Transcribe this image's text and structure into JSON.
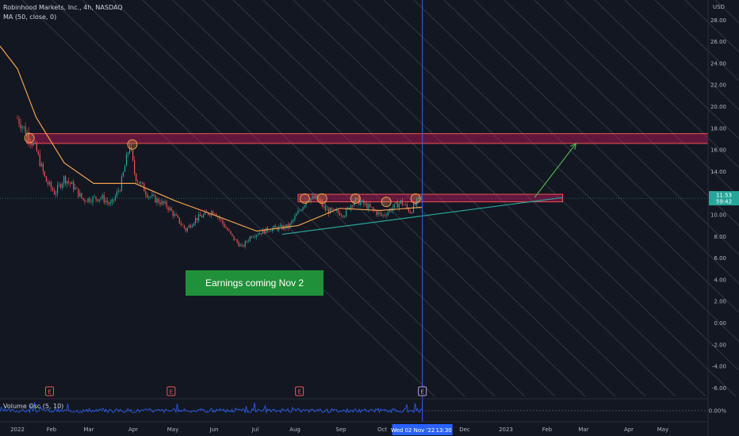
{
  "header": {
    "symbol_title": "Robinhood Markets, Inc., 4h, NASDAQ",
    "ma_label": "MA (50, close, 0)",
    "volume_osc_label": "Volume Osc (5, 10)",
    "currency": "USD"
  },
  "price_tag": {
    "value": "11.53",
    "countdown": "59:42"
  },
  "crosshair_time": "Wed 02 Nov '22",
  "crosshair_clock": "13:30",
  "annotation": "Earnings coming Nov 2",
  "earnings_marker": "E",
  "colors": {
    "background": "#131722",
    "up": "#26a69a",
    "down": "#ef5350",
    "ma": "#f0a04c",
    "resistance_zone": "#c2185b",
    "support_line": "#26a69a",
    "crosshair": "#2962ff",
    "annotation_bg": "#20913a"
  },
  "chart_data": {
    "type": "candlestick",
    "title": "Robinhood Markets, Inc., 4h, NASDAQ",
    "ylabel": "USD",
    "ylim": [
      -6.5,
      29
    ],
    "y_ticks": [
      "28.00",
      "26.00",
      "24.00",
      "22.00",
      "20.00",
      "18.00",
      "16.00",
      "14.00",
      "12.00",
      "10.00",
      "8.00",
      "6.00",
      "4.00",
      "2.00",
      "0.00",
      "-2.00",
      "-4.00",
      "-6.00"
    ],
    "x_ticks": [
      "2022",
      "Feb",
      "Mar",
      "Apr",
      "May",
      "Jun",
      "Jul",
      "Aug",
      "Sep",
      "Oct",
      "Dec",
      "2023",
      "Feb",
      "Mar",
      "Apr",
      "May"
    ],
    "price_path": [
      {
        "date": "2022-01-03",
        "price": 18.9
      },
      {
        "date": "2022-01-10",
        "price": 17.6
      },
      {
        "date": "2022-01-17",
        "price": 16.0
      },
      {
        "date": "2022-01-24",
        "price": 13.2
      },
      {
        "date": "2022-01-31",
        "price": 12.0
      },
      {
        "date": "2022-02-07",
        "price": 13.4
      },
      {
        "date": "2022-02-14",
        "price": 12.6
      },
      {
        "date": "2022-02-21",
        "price": 11.4
      },
      {
        "date": "2022-03-07",
        "price": 11.6
      },
      {
        "date": "2022-03-14",
        "price": 10.9
      },
      {
        "date": "2022-03-21",
        "price": 12.6
      },
      {
        "date": "2022-03-28",
        "price": 16.5
      },
      {
        "date": "2022-04-01",
        "price": 13.6
      },
      {
        "date": "2022-04-11",
        "price": 11.8
      },
      {
        "date": "2022-04-25",
        "price": 10.8
      },
      {
        "date": "2022-05-09",
        "price": 8.6
      },
      {
        "date": "2022-05-16",
        "price": 9.6
      },
      {
        "date": "2022-05-30",
        "price": 10.4
      },
      {
        "date": "2022-06-13",
        "price": 7.9
      },
      {
        "date": "2022-06-20",
        "price": 7.0
      },
      {
        "date": "2022-06-27",
        "price": 8.1
      },
      {
        "date": "2022-07-11",
        "price": 8.7
      },
      {
        "date": "2022-07-25",
        "price": 8.9
      },
      {
        "date": "2022-08-01",
        "price": 10.2
      },
      {
        "date": "2022-08-08",
        "price": 11.5
      },
      {
        "date": "2022-08-15",
        "price": 11.5
      },
      {
        "date": "2022-08-22",
        "price": 10.4
      },
      {
        "date": "2022-09-05",
        "price": 10.1
      },
      {
        "date": "2022-09-12",
        "price": 11.4
      },
      {
        "date": "2022-09-19",
        "price": 11.0
      },
      {
        "date": "2022-10-03",
        "price": 9.9
      },
      {
        "date": "2022-10-10",
        "price": 10.6
      },
      {
        "date": "2022-10-17",
        "price": 11.2
      },
      {
        "date": "2022-10-24",
        "price": 10.3
      },
      {
        "date": "2022-10-31",
        "price": 11.5
      }
    ],
    "moving_average": {
      "name": "MA (50, close, 0)",
      "points": [
        {
          "date": "2022-01-03",
          "value": 23.5
        },
        {
          "date": "2022-01-17",
          "value": 19.0
        },
        {
          "date": "2022-02-07",
          "value": 14.8
        },
        {
          "date": "2022-03-01",
          "value": 12.9
        },
        {
          "date": "2022-04-01",
          "value": 12.9
        },
        {
          "date": "2022-05-01",
          "value": 11.3
        },
        {
          "date": "2022-06-01",
          "value": 9.9
        },
        {
          "date": "2022-07-01",
          "value": 8.5
        },
        {
          "date": "2022-08-01",
          "value": 9.0
        },
        {
          "date": "2022-09-01",
          "value": 10.6
        },
        {
          "date": "2022-10-01",
          "value": 10.4
        },
        {
          "date": "2022-11-02",
          "value": 10.7
        }
      ]
    },
    "zones": [
      {
        "from": "2022-01-10",
        "to": "2023-05-31",
        "top": 17.5,
        "bottom": 16.6
      },
      {
        "from": "2022-08-01",
        "to": "2023-02-15",
        "top": 11.9,
        "bottom": 11.2
      }
    ],
    "support_trendline": {
      "from": {
        "date": "2022-07-20",
        "price": 8.2
      },
      "to": {
        "date": "2023-02-15",
        "price": 11.6
      }
    },
    "projection_arrow": {
      "from": {
        "date": "2023-01-25",
        "price": 11.6
      },
      "to": {
        "date": "2023-02-25",
        "price": 16.6
      }
    },
    "touch_points": [
      {
        "date": "2022-01-12",
        "price": 17.1
      },
      {
        "date": "2022-03-30",
        "price": 16.5
      },
      {
        "date": "2022-08-06",
        "price": 11.5
      },
      {
        "date": "2022-08-19",
        "price": 11.5
      },
      {
        "date": "2022-09-13",
        "price": 11.5
      },
      {
        "date": "2022-10-06",
        "price": 11.2
      },
      {
        "date": "2022-10-28",
        "price": 11.5
      }
    ],
    "earnings_dates": [
      "2022-01-27",
      "2022-04-28",
      "2022-08-02",
      "2022-11-02"
    ],
    "current_price": 11.53
  }
}
